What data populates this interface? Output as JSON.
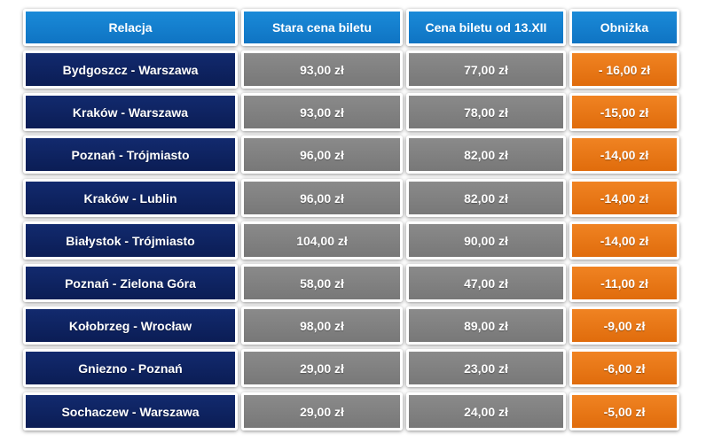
{
  "chart_data": {
    "type": "table",
    "columns": [
      "Relacja",
      "Stara cena biletu",
      "Cena biletu od 13.XII",
      "Obniżka"
    ],
    "rows": [
      [
        "Bydgoszcz - Warszawa",
        "93,00 zł",
        "77,00 zł",
        "- 16,00 zł"
      ],
      [
        "Kraków - Warszawa",
        "93,00 zł",
        "78,00 zł",
        "-15,00 zł"
      ],
      [
        "Poznań - Trójmiasto",
        "96,00 zł",
        "82,00 zł",
        "-14,00 zł"
      ],
      [
        "Kraków - Lublin",
        "96,00 zł",
        "82,00 zł",
        "-14,00 zł"
      ],
      [
        "Białystok - Trójmiasto",
        "104,00 zł",
        "90,00 zł",
        "-14,00 zł"
      ],
      [
        "Poznań - Zielona Góra",
        "58,00 zł",
        "47,00 zł",
        "-11,00 zł"
      ],
      [
        "Kołobrzeg - Wrocław",
        "98,00 zł",
        "89,00 zł",
        "-9,00 zł"
      ],
      [
        "Gniezno - Poznań",
        "29,00 zł",
        "23,00 zł",
        "-6,00 zł"
      ],
      [
        "Sochaczew - Warszawa",
        "29,00 zł",
        "24,00 zł",
        "-5,00 zł"
      ]
    ]
  },
  "colors": {
    "header": "#1081cf",
    "route": "#0f2461",
    "price": "#808080",
    "discount": "#e8760f"
  }
}
